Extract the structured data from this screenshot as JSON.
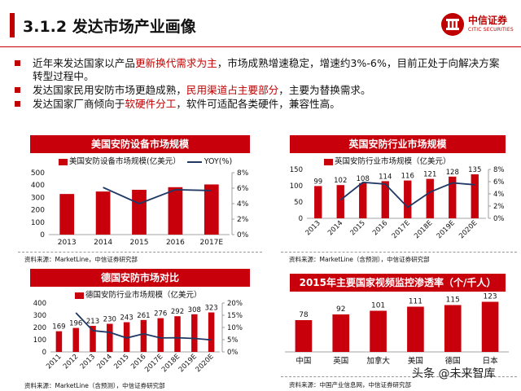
{
  "header": {
    "title": "3.1.2 发达市场产业画像",
    "logo_cn": "中信证券",
    "logo_en": "CITIC SECURITIES"
  },
  "bullets": [
    {
      "pre": "近年来发达国家以产品",
      "hl": "更新换代需求为主",
      "post": "，市场成熟增速稳定，增速约3%-6%，目前正处于向解决方案转型过程中。"
    },
    {
      "pre": "发达国家民用安防市场更趋成熟，",
      "hl": "民用渠道占主要部分",
      "post": "，主要为替换需求。"
    },
    {
      "pre": "发达国家厂商倾向于",
      "hl": "软硬件分工",
      "post": "，软件可适配各类硬件，兼容性高。"
    }
  ],
  "panels": {
    "us": {
      "title": "美国安防设备市场规模",
      "source": "资料来源：MarketLine，中信证券研究部"
    },
    "uk": {
      "title": "英国安防行业市场规模",
      "source": "资料来源：MarketLine（含预测），中信证券研究部"
    },
    "de": {
      "title": "德国安防市场对比",
      "source": "资料来源：MarketLine（含预测），中信证券研究部"
    },
    "pen": {
      "title": "2015年主要国家视频监控渗透率（个/千人）",
      "source": "资料来源：中国产业信息网，中信证券研究部"
    }
  },
  "watermark": "头条 @未来智库",
  "colors": {
    "bar": "#c8000b",
    "line": "#1f3864",
    "accent": "#c00000"
  },
  "chart_data": [
    {
      "id": "us",
      "type": "bar+line",
      "categories": [
        "2013",
        "2014",
        "2015",
        "2016",
        "2017E"
      ],
      "series": [
        {
          "name": "美国安防设备市场规模(亿美元）",
          "kind": "bar",
          "axis": "left",
          "values": [
            328,
            348,
            362,
            383,
            405
          ]
        },
        {
          "name": "YOY(%)",
          "kind": "line",
          "axis": "right",
          "values": [
            null,
            6.1,
            4.0,
            5.8,
            5.7
          ]
        }
      ],
      "y_left": {
        "min": 0,
        "max": 500,
        "ticks": [
          0,
          100,
          200,
          300,
          400,
          500
        ]
      },
      "y_right": {
        "min": 0,
        "max": 8,
        "ticks": [
          "0%",
          "2%",
          "4%",
          "6%",
          "8%"
        ]
      },
      "data_labels": false
    },
    {
      "id": "uk",
      "type": "bar+line",
      "categories": [
        "2013",
        "2014",
        "2015",
        "2016",
        "2017E",
        "2018E",
        "2019E",
        "2020E"
      ],
      "series": [
        {
          "name": "英国安防行业市场规模（亿美元）",
          "kind": "bar",
          "axis": "left",
          "values": [
            99,
            102,
            108,
            114,
            116,
            121,
            128,
            135
          ]
        },
        {
          "name": "",
          "kind": "line",
          "axis": "right",
          "values": [
            null,
            3.0,
            5.9,
            5.6,
            1.8,
            4.3,
            5.8,
            5.5
          ]
        }
      ],
      "y_left": {
        "min": 0,
        "max": 150,
        "ticks": [
          0,
          50,
          100,
          150
        ]
      },
      "y_right": {
        "min": 0,
        "max": 8,
        "ticks": [
          "0%",
          "2%",
          "4%",
          "6%",
          "8%"
        ]
      },
      "data_labels": true
    },
    {
      "id": "de",
      "type": "bar+line",
      "categories": [
        "2011",
        "2012",
        "2013",
        "2014",
        "2015",
        "2016",
        "2017E",
        "2018E",
        "2019E",
        "2020E"
      ],
      "series": [
        {
          "name": "德国安防行业市场规模（亿美元）",
          "kind": "bar",
          "axis": "left",
          "values": [
            169,
            196,
            213,
            230,
            243,
            261,
            276,
            292,
            308,
            323
          ]
        },
        {
          "name": "",
          "kind": "line",
          "axis": "right",
          "values": [
            null,
            16.0,
            8.7,
            8.0,
            5.7,
            7.4,
            5.7,
            5.8,
            5.5,
            4.9
          ]
        }
      ],
      "y_left": {
        "min": 0,
        "max": 400,
        "ticks": [
          0,
          100,
          200,
          300,
          400
        ]
      },
      "y_right": {
        "min": 0,
        "max": 20,
        "ticks": [
          "0%",
          "5%",
          "10%",
          "15%",
          "20%"
        ]
      },
      "data_labels": true
    },
    {
      "id": "pen",
      "type": "bar",
      "categories": [
        "中国",
        "英国",
        "加拿大",
        "美国",
        "德国",
        "日本"
      ],
      "series": [
        {
          "name": "",
          "kind": "bar",
          "values": [
            78,
            92,
            101,
            111,
            115,
            123
          ]
        }
      ],
      "y_left": {
        "min": 0,
        "max": 140
      },
      "data_labels": true
    }
  ]
}
